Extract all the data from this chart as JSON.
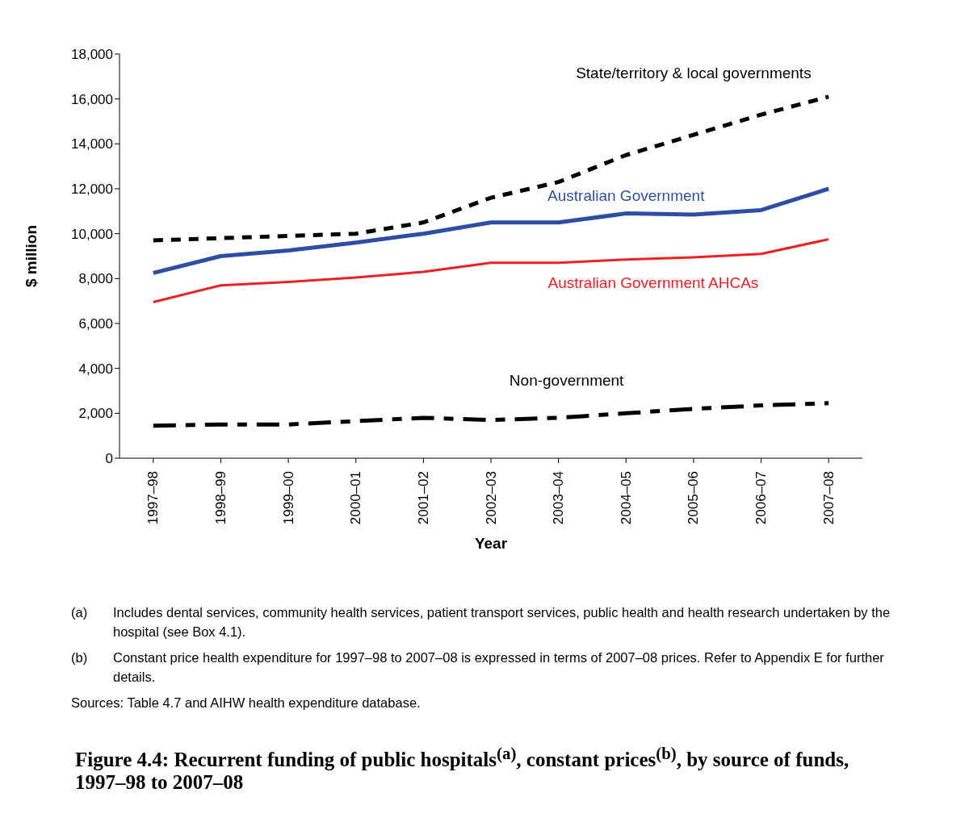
{
  "chart_data": {
    "type": "line",
    "title": "Figure 4.4: Recurrent funding of public hospitals$^{(a)}$, constant prices$^{(b)}$, by source of funds, 1997–98 to 2007–08",
    "xlabel": "Year",
    "ylabel": "$ million",
    "categories": [
      "1997–98",
      "1998–99",
      "1999–00",
      "2000–01",
      "2001–02",
      "2002–03",
      "2003–04",
      "2004–05",
      "2005–06",
      "2006–07",
      "2007–08"
    ],
    "series": [
      {
        "name": "State/territory & local governments",
        "color": "#000000",
        "line_style": "dotted",
        "values": [
          9700,
          9800,
          9900,
          10000,
          10500,
          11600,
          12300,
          13500,
          14400,
          15300,
          16100
        ]
      },
      {
        "name": "Australian Government",
        "color": "#2e4ea3",
        "line_style": "solid",
        "values": [
          8250,
          9000,
          9250,
          9600,
          10000,
          10500,
          10500,
          10900,
          10850,
          11050,
          12000
        ]
      },
      {
        "name": "Australian Government AHCAs",
        "color": "#ee2024",
        "line_style": "solid",
        "values": [
          6950,
          7700,
          7850,
          8050,
          8300,
          8700,
          8700,
          8850,
          8950,
          9100,
          9750
        ]
      },
      {
        "name": "Non-government",
        "color": "#000000",
        "line_style": "dashed",
        "values": [
          1450,
          1500,
          1500,
          1650,
          1800,
          1700,
          1800,
          2000,
          2200,
          2350,
          2450
        ]
      }
    ],
    "ylim": [
      0,
      18000
    ],
    "yticks": [
      0,
      {
        "value": 2000,
        "label": "2,000"
      },
      {
        "value": 4000,
        "label": "4,000"
      },
      {
        "value": 6000,
        "label": "6,000"
      },
      {
        "value": 8000,
        "label": "8,000"
      },
      {
        "value": 10000,
        "label": "10,000"
      },
      {
        "value": 12000,
        "label": "12,000"
      },
      {
        "value": 14000,
        "label": "14,000"
      },
      {
        "value": 16000,
        "label": "16,000"
      },
      {
        "value": 18000,
        "label": "18,000"
      }
    ],
    "grid": false,
    "legend": false,
    "marker": "none",
    "annotations": [
      "(a)\tIncludes dental services, community health services, patient transport services, public health and health research undertaken by the hospital (see Box 4.1).",
      "(b)\tConstant price health expenditure for 1997–98 to 2007–08 is expressed in terms of 2007–08 prices. Refer to Appendix E for further details.",
      "Sources: Table 4.7 and AIHW health expenditure database."
    ]
  }
}
